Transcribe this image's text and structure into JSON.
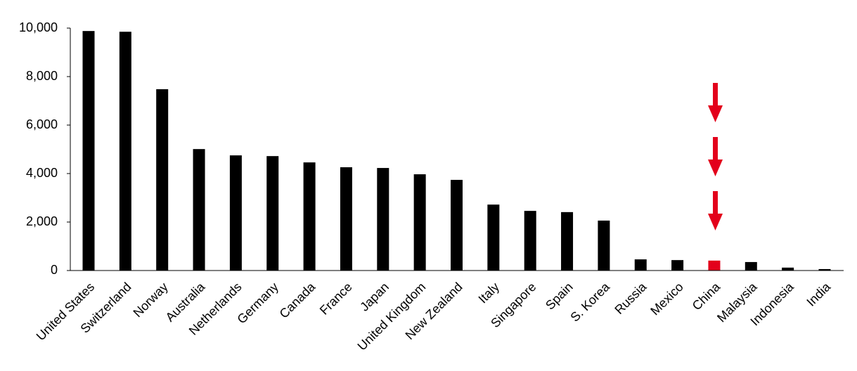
{
  "chart_data": {
    "type": "bar",
    "categories": [
      "United States",
      "Switzerland",
      "Norway",
      "Australia",
      "Netherlands",
      "Germany",
      "Canada",
      "France",
      "Japan",
      "United Kingdom",
      "New Zealand",
      "Italy",
      "Singapore",
      "Spain",
      "S. Korea",
      "Russia",
      "Mexico",
      "China",
      "Malaysia",
      "Indonesia",
      "India"
    ],
    "values": [
      9880,
      9850,
      7480,
      5010,
      4750,
      4720,
      4460,
      4260,
      4230,
      3970,
      3740,
      2720,
      2460,
      2410,
      2060,
      460,
      430,
      410,
      350,
      120,
      60
    ],
    "colors": [
      "#000000",
      "#000000",
      "#000000",
      "#000000",
      "#000000",
      "#000000",
      "#000000",
      "#000000",
      "#000000",
      "#000000",
      "#000000",
      "#000000",
      "#000000",
      "#000000",
      "#000000",
      "#000000",
      "#000000",
      "#e3001b",
      "#000000",
      "#000000",
      "#000000"
    ],
    "ylim": [
      0,
      10000
    ],
    "yticks": [
      0,
      {
        "value": 2000,
        "label": "2,000"
      },
      {
        "value": 4000,
        "label": "4,000"
      },
      {
        "value": 6000,
        "label": "6,000"
      },
      {
        "value": 8000,
        "label": "8,000"
      },
      {
        "value": 10000,
        "label": "10,000"
      }
    ],
    "grid": false
  }
}
